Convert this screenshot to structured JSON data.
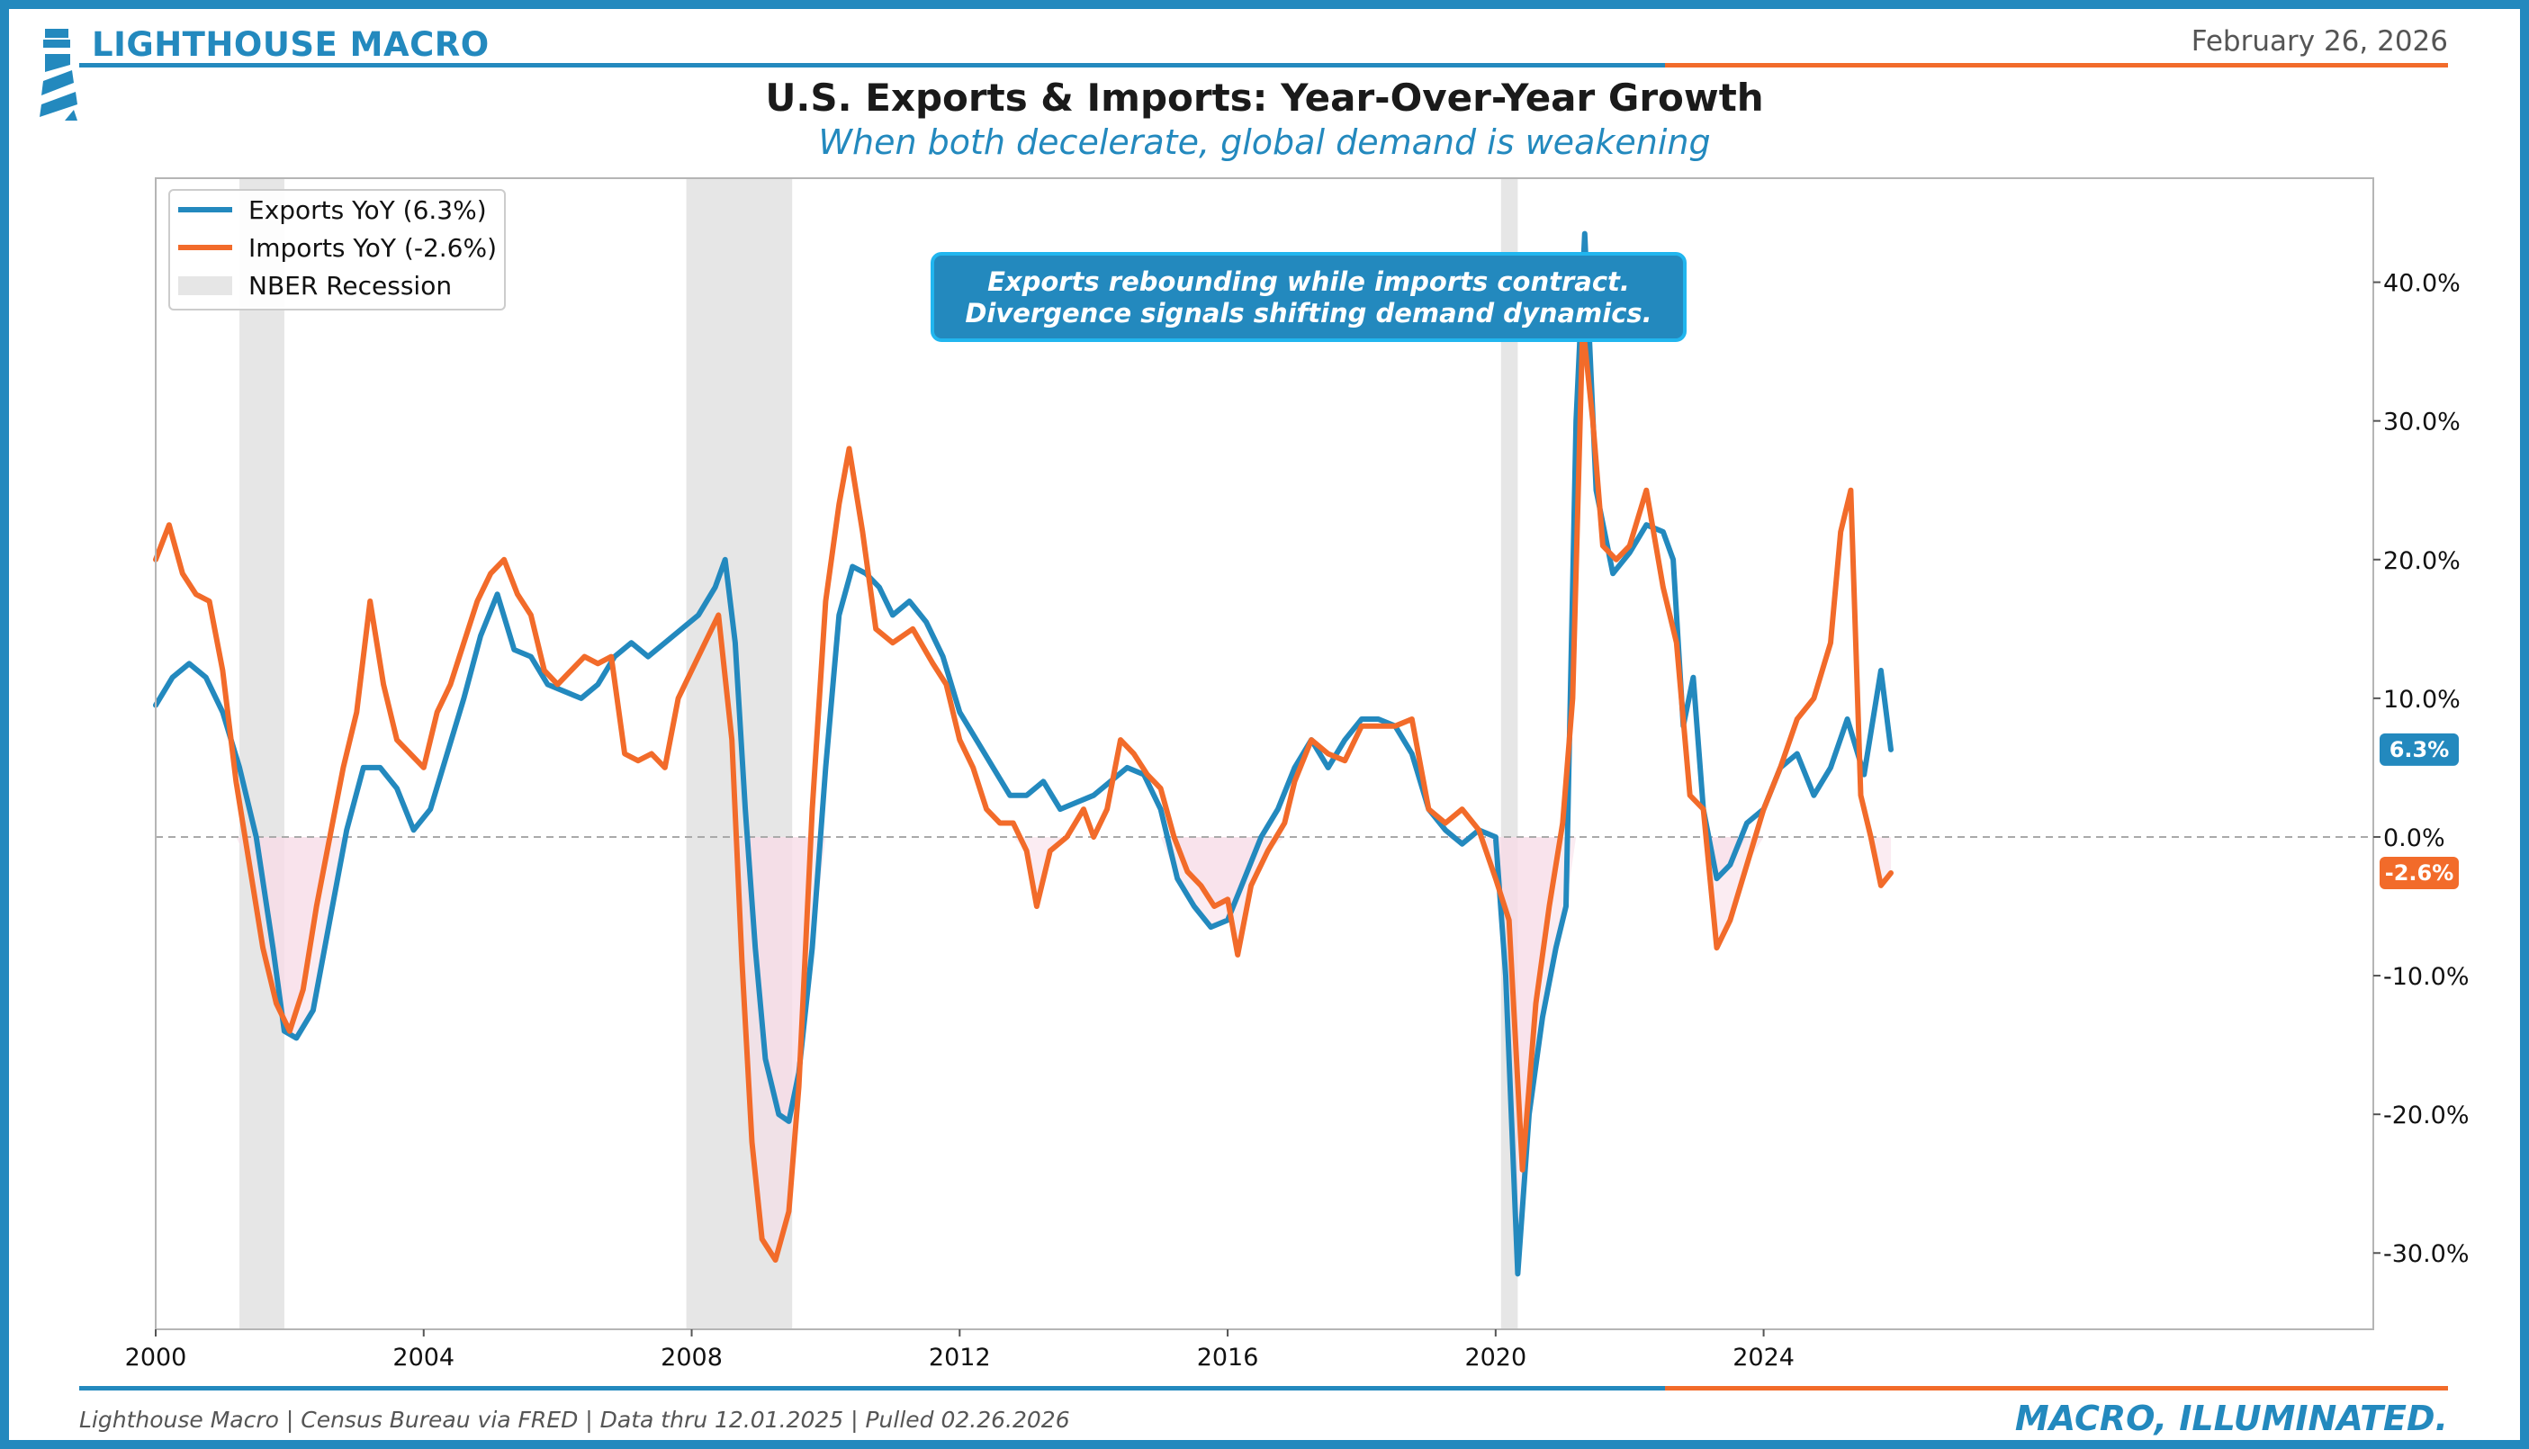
{
  "header": {
    "brand": "LIGHTHOUSE MACRO",
    "date": "February 26, 2026",
    "title": "U.S. Exports & Imports: Year-Over-Year Growth",
    "subtitle": "When both decelerate, global demand is weakening"
  },
  "footer": {
    "source_note": "Lighthouse Macro | Census Bureau via FRED | Data thru 12.01.2025 | Pulled 02.26.2026",
    "tagline": "MACRO, ILLUMINATED."
  },
  "annotation": {
    "line1": "Exports rebounding while imports contract.",
    "line2": "Divergence signals shifting demand dynamics."
  },
  "colors": {
    "exports": "#2389be",
    "imports": "#f26b2a",
    "recession": "#e6e6e6",
    "negative_fill": "#f7dde8",
    "brand": "#2389be"
  },
  "chart_data": {
    "type": "line",
    "xlim": [
      2000,
      2033.1
    ],
    "ylim": [
      -35.5,
      47.5
    ],
    "x_ticks": [
      "2000",
      "2004",
      "2008",
      "2012",
      "2016",
      "2020",
      "2024"
    ],
    "x_tick_values": [
      2000,
      2004,
      2008,
      2012,
      2016,
      2020,
      2024
    ],
    "y_ticks": [
      "-30.0%",
      "-20.0%",
      "-10.0%",
      "0.0%",
      "10.0%",
      "20.0%",
      "30.0%",
      "40.0%"
    ],
    "y_tick_values": [
      -30,
      -20,
      -10,
      0,
      10,
      20,
      30,
      40
    ],
    "y_axis_side": "right",
    "zero_line": "dashed",
    "grid": false,
    "legend_position": "top-left",
    "legend": [
      "Exports YoY (6.3%)",
      "Imports YoY (-2.6%)",
      "NBER Recession"
    ],
    "recessions": [
      [
        2001.25,
        2001.92
      ],
      [
        2007.92,
        2009.5
      ],
      [
        2020.08,
        2020.33
      ]
    ],
    "series": [
      {
        "name": "Exports YoY (6.3%)",
        "last_label": "6.3%",
        "points": [
          [
            2000.0,
            9.5
          ],
          [
            2000.25,
            11.5
          ],
          [
            2000.5,
            12.5
          ],
          [
            2000.75,
            11.5
          ],
          [
            2001.0,
            9.0
          ],
          [
            2001.25,
            5.0
          ],
          [
            2001.5,
            0.0
          ],
          [
            2001.75,
            -8.0
          ],
          [
            2001.92,
            -14.0
          ],
          [
            2002.1,
            -14.5
          ],
          [
            2002.35,
            -12.5
          ],
          [
            2002.6,
            -6.0
          ],
          [
            2002.85,
            0.5
          ],
          [
            2003.1,
            5.0
          ],
          [
            2003.35,
            5.0
          ],
          [
            2003.6,
            3.5
          ],
          [
            2003.85,
            0.5
          ],
          [
            2004.1,
            2.0
          ],
          [
            2004.35,
            6.0
          ],
          [
            2004.6,
            10.0
          ],
          [
            2004.85,
            14.5
          ],
          [
            2005.1,
            17.5
          ],
          [
            2005.35,
            13.5
          ],
          [
            2005.6,
            13.0
          ],
          [
            2005.85,
            11.0
          ],
          [
            2006.1,
            10.5
          ],
          [
            2006.35,
            10.0
          ],
          [
            2006.6,
            11.0
          ],
          [
            2006.85,
            13.0
          ],
          [
            2007.1,
            14.0
          ],
          [
            2007.35,
            13.0
          ],
          [
            2007.6,
            14.0
          ],
          [
            2007.85,
            15.0
          ],
          [
            2008.1,
            16.0
          ],
          [
            2008.35,
            18.0
          ],
          [
            2008.5,
            20.0
          ],
          [
            2008.65,
            14.0
          ],
          [
            2008.8,
            2.0
          ],
          [
            2008.95,
            -8.0
          ],
          [
            2009.1,
            -16.0
          ],
          [
            2009.3,
            -20.0
          ],
          [
            2009.45,
            -20.5
          ],
          [
            2009.6,
            -17.0
          ],
          [
            2009.8,
            -8.0
          ],
          [
            2010.0,
            5.0
          ],
          [
            2010.2,
            16.0
          ],
          [
            2010.4,
            19.5
          ],
          [
            2010.6,
            19.0
          ],
          [
            2010.8,
            18.0
          ],
          [
            2011.0,
            16.0
          ],
          [
            2011.25,
            17.0
          ],
          [
            2011.5,
            15.5
          ],
          [
            2011.75,
            13.0
          ],
          [
            2012.0,
            9.0
          ],
          [
            2012.25,
            7.0
          ],
          [
            2012.5,
            5.0
          ],
          [
            2012.75,
            3.0
          ],
          [
            2013.0,
            3.0
          ],
          [
            2013.25,
            4.0
          ],
          [
            2013.5,
            2.0
          ],
          [
            2013.75,
            2.5
          ],
          [
            2014.0,
            3.0
          ],
          [
            2014.25,
            4.0
          ],
          [
            2014.5,
            5.0
          ],
          [
            2014.75,
            4.5
          ],
          [
            2015.0,
            2.0
          ],
          [
            2015.25,
            -3.0
          ],
          [
            2015.5,
            -5.0
          ],
          [
            2015.75,
            -6.5
          ],
          [
            2016.0,
            -6.0
          ],
          [
            2016.25,
            -3.0
          ],
          [
            2016.5,
            0.0
          ],
          [
            2016.75,
            2.0
          ],
          [
            2017.0,
            5.0
          ],
          [
            2017.25,
            7.0
          ],
          [
            2017.5,
            5.0
          ],
          [
            2017.75,
            7.0
          ],
          [
            2018.0,
            8.5
          ],
          [
            2018.25,
            8.5
          ],
          [
            2018.5,
            8.0
          ],
          [
            2018.75,
            6.0
          ],
          [
            2019.0,
            2.0
          ],
          [
            2019.25,
            0.5
          ],
          [
            2019.5,
            -0.5
          ],
          [
            2019.75,
            0.5
          ],
          [
            2020.0,
            0.0
          ],
          [
            2020.15,
            -10.0
          ],
          [
            2020.33,
            -31.5
          ],
          [
            2020.5,
            -20.0
          ],
          [
            2020.7,
            -13.0
          ],
          [
            2020.9,
            -8.0
          ],
          [
            2021.05,
            -5.0
          ],
          [
            2021.2,
            30.0
          ],
          [
            2021.33,
            43.5
          ],
          [
            2021.5,
            25.0
          ],
          [
            2021.75,
            19.0
          ],
          [
            2022.0,
            20.5
          ],
          [
            2022.25,
            22.5
          ],
          [
            2022.5,
            22.0
          ],
          [
            2022.65,
            20.0
          ],
          [
            2022.8,
            8.0
          ],
          [
            2022.95,
            11.5
          ],
          [
            2023.1,
            2.0
          ],
          [
            2023.3,
            -3.0
          ],
          [
            2023.5,
            -2.0
          ],
          [
            2023.75,
            1.0
          ],
          [
            2024.0,
            2.0
          ],
          [
            2024.25,
            5.0
          ],
          [
            2024.5,
            6.0
          ],
          [
            2024.75,
            3.0
          ],
          [
            2025.0,
            5.0
          ],
          [
            2025.25,
            8.5
          ],
          [
            2025.5,
            4.5
          ],
          [
            2025.75,
            12.0
          ],
          [
            2025.9,
            6.3
          ]
        ]
      },
      {
        "name": "Imports YoY (-2.6%)",
        "last_label": "-2.6%",
        "points": [
          [
            2000.0,
            20.0
          ],
          [
            2000.2,
            22.5
          ],
          [
            2000.4,
            19.0
          ],
          [
            2000.6,
            17.5
          ],
          [
            2000.8,
            17.0
          ],
          [
            2001.0,
            12.0
          ],
          [
            2001.2,
            4.0
          ],
          [
            2001.4,
            -2.0
          ],
          [
            2001.6,
            -8.0
          ],
          [
            2001.8,
            -12.0
          ],
          [
            2002.0,
            -14.0
          ],
          [
            2002.2,
            -11.0
          ],
          [
            2002.4,
            -5.0
          ],
          [
            2002.6,
            0.0
          ],
          [
            2002.8,
            5.0
          ],
          [
            2003.0,
            9.0
          ],
          [
            2003.2,
            17.0
          ],
          [
            2003.4,
            11.0
          ],
          [
            2003.6,
            7.0
          ],
          [
            2003.8,
            6.0
          ],
          [
            2004.0,
            5.0
          ],
          [
            2004.2,
            9.0
          ],
          [
            2004.4,
            11.0
          ],
          [
            2004.6,
            14.0
          ],
          [
            2004.8,
            17.0
          ],
          [
            2005.0,
            19.0
          ],
          [
            2005.2,
            20.0
          ],
          [
            2005.4,
            17.5
          ],
          [
            2005.6,
            16.0
          ],
          [
            2005.8,
            12.0
          ],
          [
            2006.0,
            11.0
          ],
          [
            2006.2,
            12.0
          ],
          [
            2006.4,
            13.0
          ],
          [
            2006.6,
            12.5
          ],
          [
            2006.8,
            13.0
          ],
          [
            2007.0,
            6.0
          ],
          [
            2007.2,
            5.5
          ],
          [
            2007.4,
            6.0
          ],
          [
            2007.6,
            5.0
          ],
          [
            2007.8,
            10.0
          ],
          [
            2008.0,
            12.0
          ],
          [
            2008.2,
            14.0
          ],
          [
            2008.4,
            16.0
          ],
          [
            2008.6,
            7.0
          ],
          [
            2008.75,
            -9.0
          ],
          [
            2008.9,
            -22.0
          ],
          [
            2009.05,
            -29.0
          ],
          [
            2009.25,
            -30.5
          ],
          [
            2009.45,
            -27.0
          ],
          [
            2009.6,
            -18.0
          ],
          [
            2009.8,
            2.0
          ],
          [
            2010.0,
            17.0
          ],
          [
            2010.2,
            24.0
          ],
          [
            2010.35,
            28.0
          ],
          [
            2010.55,
            22.0
          ],
          [
            2010.75,
            15.0
          ],
          [
            2011.0,
            14.0
          ],
          [
            2011.3,
            15.0
          ],
          [
            2011.6,
            12.5
          ],
          [
            2011.8,
            11.0
          ],
          [
            2012.0,
            7.0
          ],
          [
            2012.2,
            5.0
          ],
          [
            2012.4,
            2.0
          ],
          [
            2012.6,
            1.0
          ],
          [
            2012.8,
            1.0
          ],
          [
            2013.0,
            -1.0
          ],
          [
            2013.15,
            -5.0
          ],
          [
            2013.35,
            -1.0
          ],
          [
            2013.6,
            0.0
          ],
          [
            2013.85,
            2.0
          ],
          [
            2014.0,
            0.0
          ],
          [
            2014.2,
            2.0
          ],
          [
            2014.4,
            7.0
          ],
          [
            2014.6,
            6.0
          ],
          [
            2014.8,
            4.5
          ],
          [
            2015.0,
            3.5
          ],
          [
            2015.2,
            0.0
          ],
          [
            2015.4,
            -2.5
          ],
          [
            2015.6,
            -3.5
          ],
          [
            2015.8,
            -5.0
          ],
          [
            2016.0,
            -4.5
          ],
          [
            2016.15,
            -8.5
          ],
          [
            2016.35,
            -3.5
          ],
          [
            2016.6,
            -1.0
          ],
          [
            2016.85,
            1.0
          ],
          [
            2017.0,
            4.0
          ],
          [
            2017.25,
            7.0
          ],
          [
            2017.5,
            6.0
          ],
          [
            2017.75,
            5.5
          ],
          [
            2018.0,
            8.0
          ],
          [
            2018.25,
            8.0
          ],
          [
            2018.5,
            8.0
          ],
          [
            2018.75,
            8.5
          ],
          [
            2019.0,
            2.0
          ],
          [
            2019.25,
            1.0
          ],
          [
            2019.5,
            2.0
          ],
          [
            2019.75,
            0.5
          ],
          [
            2020.0,
            -3.0
          ],
          [
            2020.2,
            -6.0
          ],
          [
            2020.4,
            -24.0
          ],
          [
            2020.6,
            -12.0
          ],
          [
            2020.8,
            -5.0
          ],
          [
            2021.0,
            1.0
          ],
          [
            2021.15,
            10.0
          ],
          [
            2021.3,
            37.0
          ],
          [
            2021.45,
            30.0
          ],
          [
            2021.6,
            21.0
          ],
          [
            2021.8,
            20.0
          ],
          [
            2022.0,
            21.0
          ],
          [
            2022.25,
            25.0
          ],
          [
            2022.5,
            18.0
          ],
          [
            2022.7,
            14.0
          ],
          [
            2022.9,
            3.0
          ],
          [
            2023.1,
            2.0
          ],
          [
            2023.3,
            -8.0
          ],
          [
            2023.5,
            -6.0
          ],
          [
            2023.75,
            -2.0
          ],
          [
            2024.0,
            2.0
          ],
          [
            2024.25,
            5.0
          ],
          [
            2024.5,
            8.5
          ],
          [
            2024.75,
            10.0
          ],
          [
            2025.0,
            14.0
          ],
          [
            2025.15,
            22.0
          ],
          [
            2025.3,
            25.0
          ],
          [
            2025.45,
            3.0
          ],
          [
            2025.6,
            0.0
          ],
          [
            2025.75,
            -3.5
          ],
          [
            2025.9,
            -2.6
          ]
        ]
      }
    ]
  }
}
